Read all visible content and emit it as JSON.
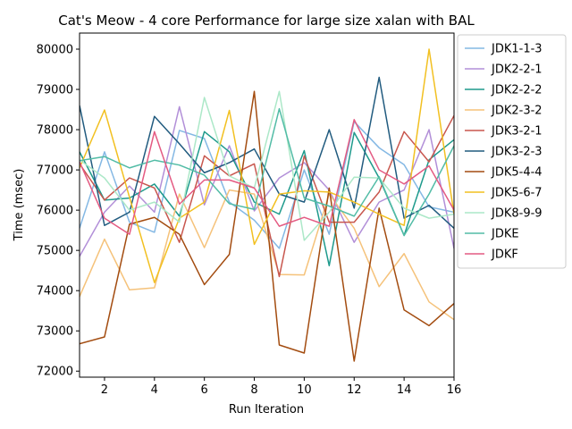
{
  "chart_data": {
    "type": "line",
    "title": "Cat's Meow - 4 core Performance for large size xalan with BAL",
    "xlabel": "Run Iteration",
    "ylabel": "Time (msec)",
    "xlim": [
      1,
      16
    ],
    "ylim": [
      71850,
      80400
    ],
    "xticks": [
      2,
      4,
      6,
      8,
      10,
      12,
      14,
      16
    ],
    "yticks": [
      72000,
      73000,
      74000,
      75000,
      76000,
      77000,
      78000,
      79000,
      80000
    ],
    "legend_position": "right-outside",
    "x": [
      1,
      2,
      3,
      4,
      5,
      6,
      7,
      8,
      9,
      10,
      11,
      12,
      13,
      14,
      15,
      16
    ],
    "series": [
      {
        "name": "JDK1-1-3",
        "color": "#84b8e4",
        "values": [
          75550,
          77450,
          75700,
          75450,
          77980,
          77780,
          76200,
          75750,
          75050,
          77000,
          75400,
          78200,
          77550,
          77130,
          76080,
          75950
        ]
      },
      {
        "name": "JDK2-2-1",
        "color": "#b28fd8",
        "values": [
          74850,
          75950,
          76600,
          75950,
          78570,
          76130,
          77600,
          75980,
          76800,
          77180,
          76500,
          75200,
          76200,
          76500,
          78000,
          75050
        ]
      },
      {
        "name": "JDK2-2-2",
        "color": "#1e9a8c",
        "values": [
          77450,
          76250,
          76300,
          76650,
          75850,
          77950,
          77450,
          76200,
          75900,
          77480,
          74620,
          77930,
          76800,
          75370,
          77250,
          77750
        ]
      },
      {
        "name": "JDK2-3-2",
        "color": "#f5c27a",
        "values": [
          73850,
          75280,
          74020,
          74070,
          76400,
          75070,
          76500,
          76400,
          74400,
          74390,
          76400,
          75550,
          74100,
          74920,
          73720,
          73280
        ]
      },
      {
        "name": "JDK3-2-1",
        "color": "#c8574e",
        "values": [
          77150,
          76250,
          76800,
          76550,
          75200,
          77350,
          76850,
          77150,
          74350,
          77350,
          75700,
          75700,
          76450,
          77950,
          77200,
          78350
        ]
      },
      {
        "name": "JDK3-2-3",
        "color": "#215b7f",
        "values": [
          78600,
          75620,
          75950,
          78330,
          77650,
          76930,
          77180,
          77520,
          76400,
          76200,
          78000,
          76050,
          79300,
          75800,
          76120,
          75550
        ]
      },
      {
        "name": "JDK5-4-4",
        "color": "#a34c10",
        "values": [
          72680,
          72850,
          75650,
          75820,
          75400,
          74150,
          74900,
          78950,
          72650,
          72450,
          76550,
          72250,
          76050,
          73520,
          73130,
          73680
        ]
      },
      {
        "name": "JDK5-6-7",
        "color": "#f2c021",
        "values": [
          77050,
          78490,
          76320,
          74200,
          75800,
          76200,
          78480,
          75150,
          76400,
          76480,
          76450,
          76200,
          75900,
          75620,
          80000,
          75900
        ]
      },
      {
        "name": "JDK8-9-9",
        "color": "#ace8c8",
        "values": [
          77250,
          76800,
          76000,
          76200,
          75700,
          78800,
          76850,
          76550,
          78950,
          75250,
          75950,
          76820,
          76800,
          76050,
          75800,
          75900
        ]
      },
      {
        "name": "JDKE",
        "color": "#52bca6",
        "values": [
          77230,
          77330,
          77050,
          77240,
          77120,
          76870,
          76160,
          76020,
          78520,
          76300,
          76100,
          75850,
          76830,
          75370,
          76400,
          77600
        ]
      },
      {
        "name": "JDKF",
        "color": "#e45a82",
        "values": [
          77200,
          75800,
          75400,
          77950,
          76150,
          76750,
          76750,
          76550,
          75600,
          75820,
          75600,
          78250,
          77000,
          76650,
          77100,
          76000
        ]
      }
    ]
  }
}
